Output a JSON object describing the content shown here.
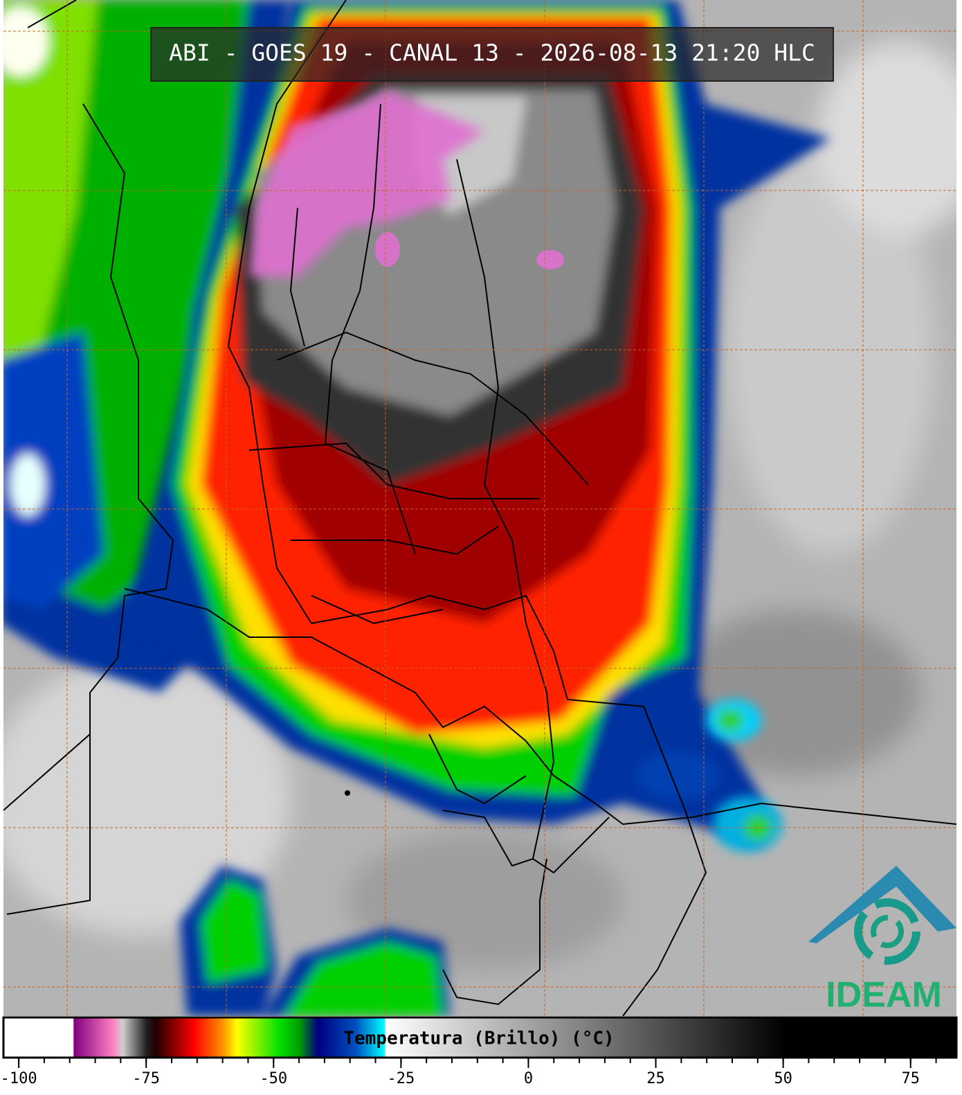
{
  "title": "ABI - GOES 19 - CANAL 13 - 2026-08-13 21:20 HLC",
  "colorbar": {
    "label": "Temperatura (Brillo) (°C)",
    "xlim": [
      -103,
      84
    ],
    "xticks": [
      -100,
      -75,
      -50,
      -25,
      0,
      25,
      50,
      75
    ]
  },
  "logo": "IDEAM"
}
